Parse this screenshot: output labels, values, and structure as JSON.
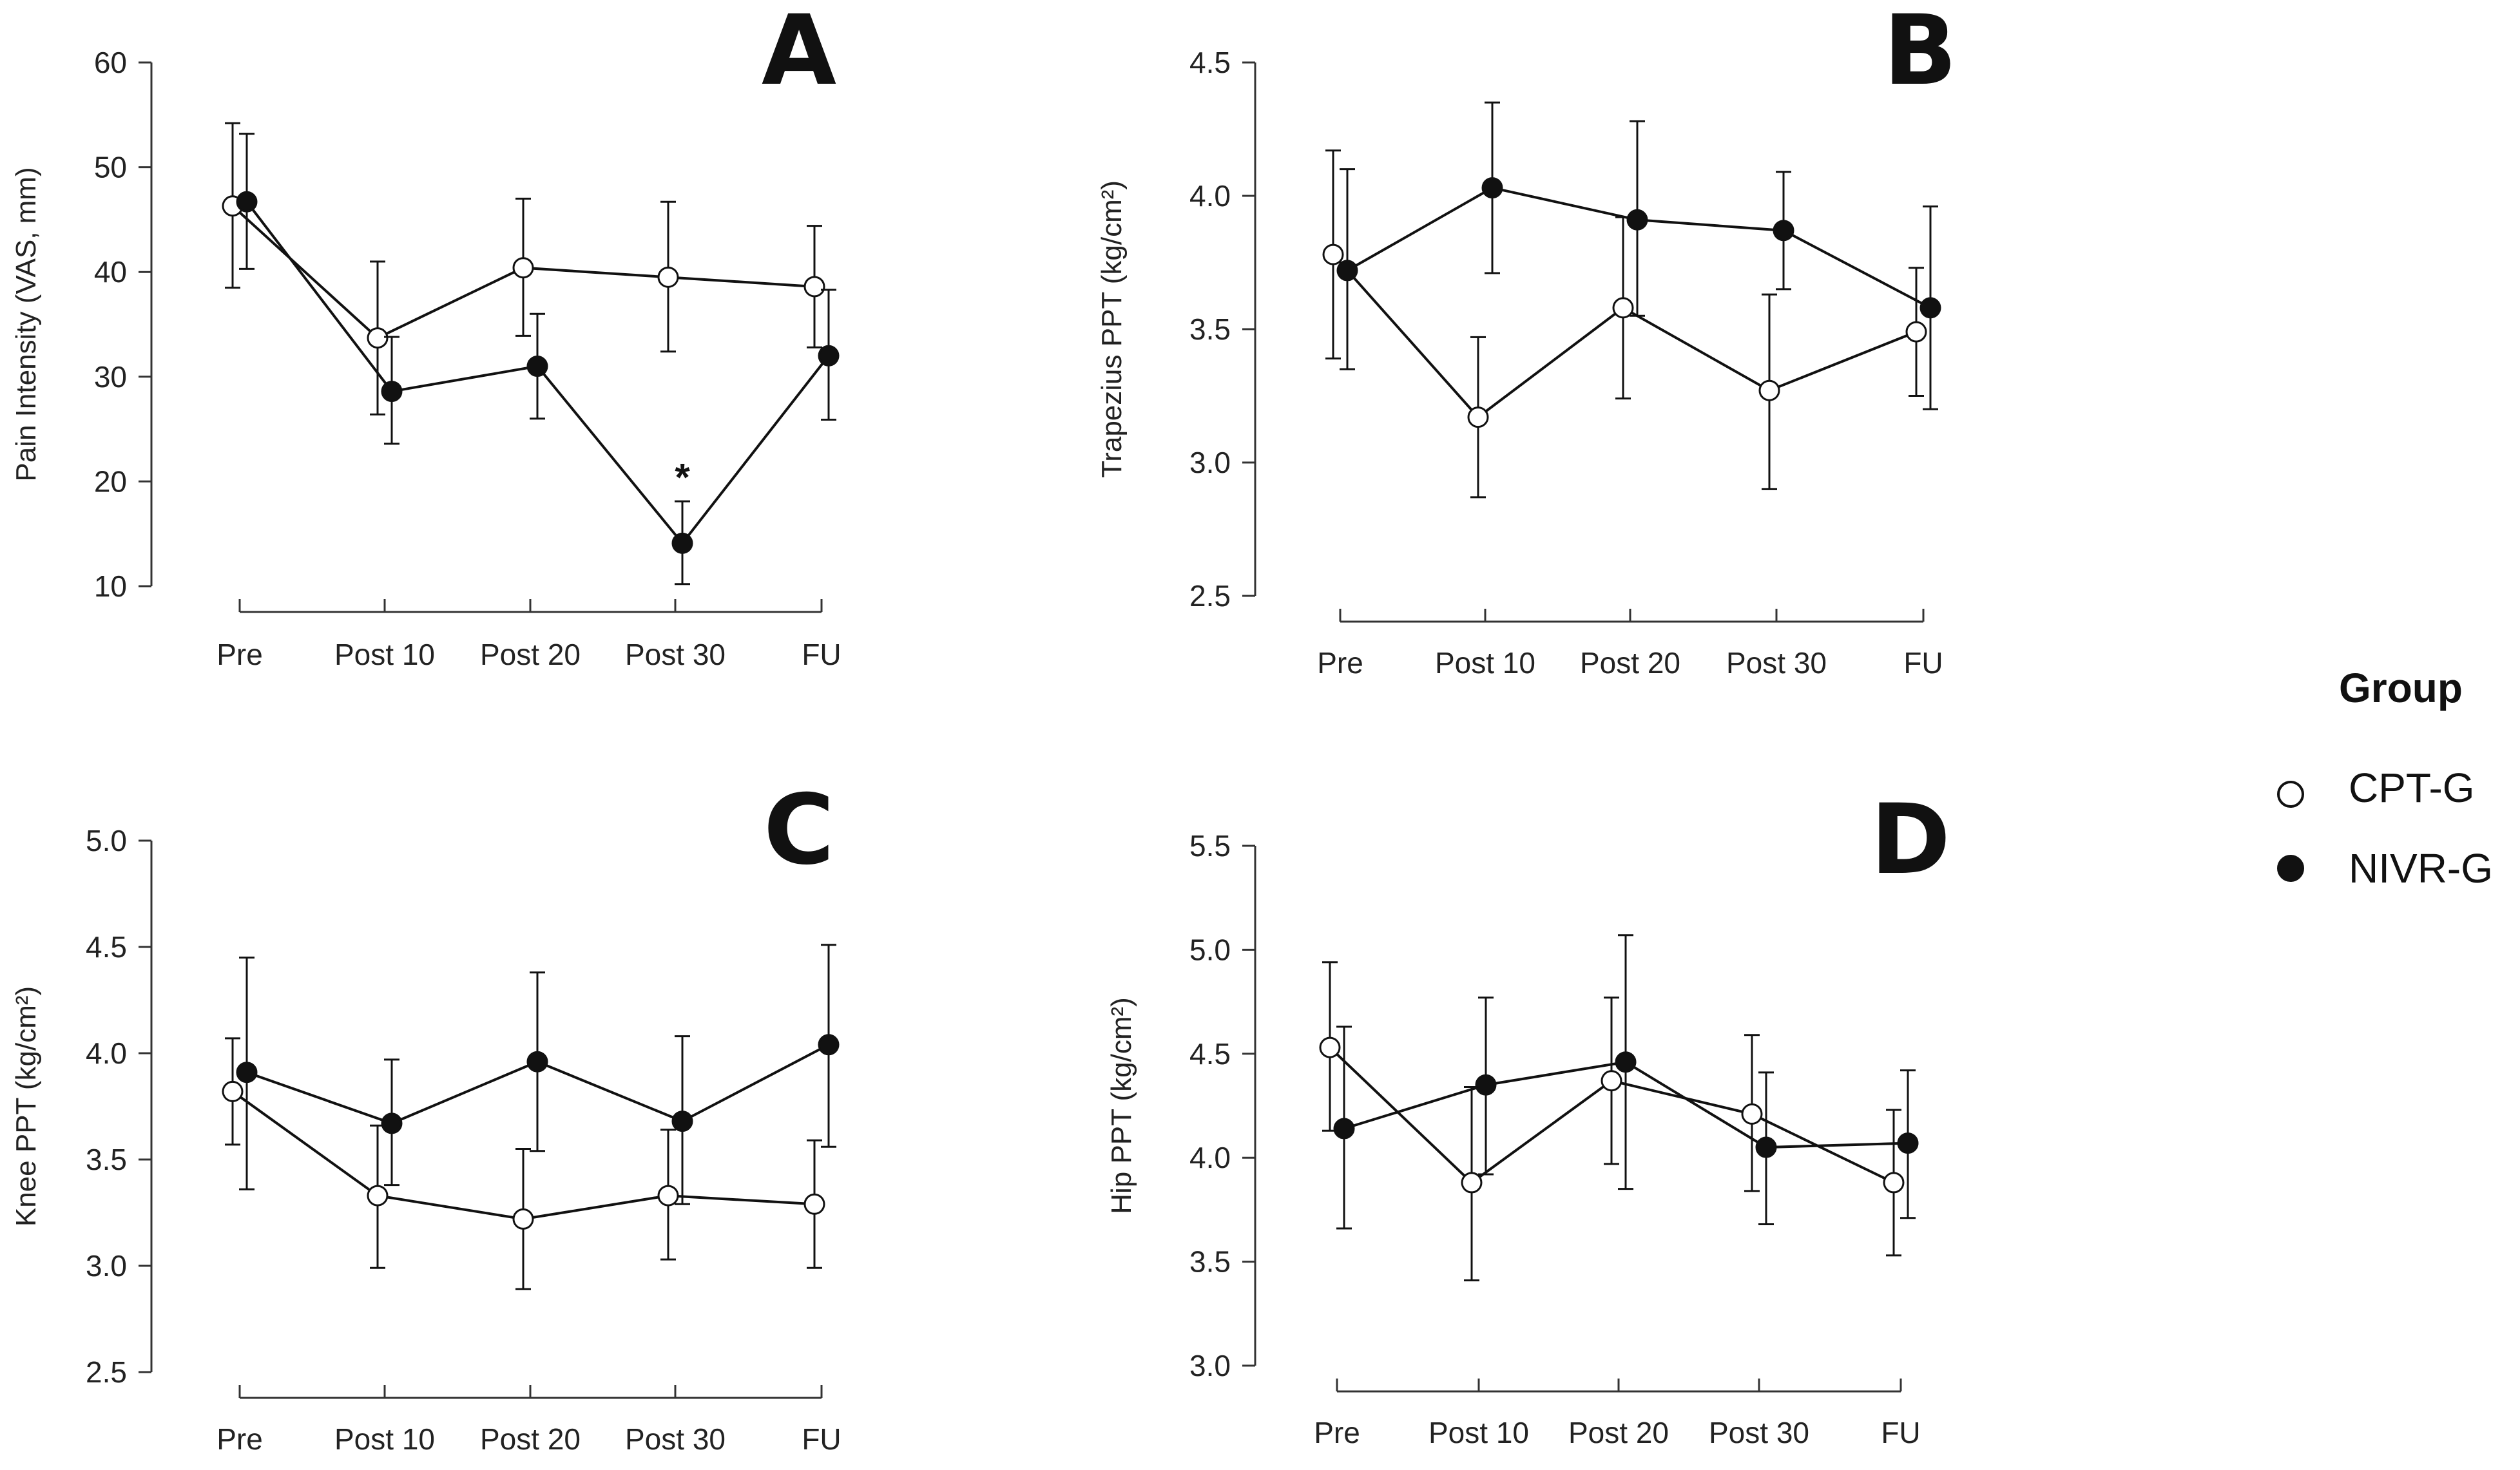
{
  "chart_data": [
    {
      "id": "A",
      "type": "line",
      "panel_label": "A",
      "ylabel": "Pain Intensity (VAS, mm)",
      "xlabel": "",
      "categories": [
        "Pre",
        "Post 10",
        "Post 20",
        "Post 30",
        "FU"
      ],
      "ylim": [
        10,
        60
      ],
      "yticks": [
        10,
        20,
        30,
        40,
        50,
        60
      ],
      "ytick_labels": [
        "10",
        "20",
        "30",
        "40",
        "50",
        "60"
      ],
      "series": [
        {
          "name": "CPT-G",
          "marker": "open-circle",
          "values": [
            46.3,
            33.7,
            40.4,
            39.5,
            38.6
          ],
          "err_low": [
            38.5,
            26.4,
            33.9,
            32.4,
            32.8
          ],
          "err_high": [
            54.2,
            41.0,
            47.0,
            46.7,
            44.4
          ]
        },
        {
          "name": "NIVR-G",
          "marker": "filled-circle",
          "values": [
            46.7,
            28.6,
            31.0,
            14.1,
            32.0
          ],
          "err_low": [
            40.3,
            23.6,
            26.0,
            10.2,
            25.9
          ],
          "err_high": [
            53.2,
            33.8,
            36.0,
            18.1,
            38.3
          ]
        }
      ],
      "annotations": [
        {
          "text": "*",
          "category": "Post 30",
          "y": 20.5
        }
      ]
    },
    {
      "id": "B",
      "type": "line",
      "panel_label": "B",
      "ylabel": "Trapezius PPT (kg/cm²)",
      "xlabel": "",
      "categories": [
        "Pre",
        "Post 10",
        "Post 20",
        "Post 30",
        "FU"
      ],
      "ylim": [
        2.5,
        4.5
      ],
      "yticks": [
        2.5,
        3.0,
        3.5,
        4.0,
        4.5
      ],
      "ytick_labels": [
        "2.5",
        "3.0",
        "3.5",
        "4.0",
        "4.5"
      ],
      "series": [
        {
          "name": "CPT-G",
          "marker": "open-circle",
          "values": [
            3.78,
            3.17,
            3.58,
            3.27,
            3.49
          ],
          "err_low": [
            3.39,
            2.87,
            3.24,
            2.9,
            3.25
          ],
          "err_high": [
            4.17,
            3.47,
            3.92,
            3.63,
            3.73
          ]
        },
        {
          "name": "NIVR-G",
          "marker": "filled-circle",
          "values": [
            3.72,
            4.03,
            3.91,
            3.87,
            3.58
          ],
          "err_low": [
            3.35,
            3.71,
            3.55,
            3.65,
            3.2
          ],
          "err_high": [
            4.1,
            4.35,
            4.28,
            4.09,
            3.96
          ]
        }
      ],
      "annotations": []
    },
    {
      "id": "C",
      "type": "line",
      "panel_label": "C",
      "ylabel": "Knee PPT (kg/cm²)",
      "xlabel": "",
      "categories": [
        "Pre",
        "Post 10",
        "Post 20",
        "Post 30",
        "FU"
      ],
      "ylim": [
        2.5,
        5.0
      ],
      "yticks": [
        2.5,
        3.0,
        3.5,
        4.0,
        4.5,
        5.0
      ],
      "ytick_labels": [
        "2.5",
        "3.0",
        "3.5",
        "4.0",
        "4.5",
        "5.0"
      ],
      "series": [
        {
          "name": "CPT-G",
          "marker": "open-circle",
          "values": [
            3.82,
            3.33,
            3.22,
            3.33,
            3.29
          ],
          "err_low": [
            3.57,
            2.99,
            2.89,
            3.03,
            2.99
          ],
          "err_high": [
            4.07,
            3.66,
            3.55,
            3.64,
            3.59
          ]
        },
        {
          "name": "NIVR-G",
          "marker": "filled-circle",
          "values": [
            3.91,
            3.67,
            3.96,
            3.68,
            4.04
          ],
          "err_low": [
            3.36,
            3.38,
            3.54,
            3.29,
            3.56
          ],
          "err_high": [
            4.45,
            3.97,
            4.38,
            4.08,
            4.51
          ]
        }
      ],
      "annotations": []
    },
    {
      "id": "D",
      "type": "line",
      "panel_label": "D",
      "ylabel": "Hip PPT (kg/cm²)",
      "xlabel": "",
      "categories": [
        "Pre",
        "Post 10",
        "Post 20",
        "Post 30",
        "FU"
      ],
      "ylim": [
        3.0,
        5.5
      ],
      "yticks": [
        3.0,
        3.5,
        4.0,
        4.5,
        5.0,
        5.5
      ],
      "ytick_labels": [
        "3.0",
        "3.5",
        "4.0",
        "4.5",
        "5.0",
        "5.5"
      ],
      "series": [
        {
          "name": "CPT-G",
          "marker": "open-circle",
          "values": [
            4.53,
            3.88,
            4.37,
            4.21,
            3.88
          ],
          "err_low": [
            4.13,
            3.41,
            3.97,
            3.84,
            3.53
          ],
          "err_high": [
            4.94,
            4.34,
            4.77,
            4.59,
            4.23
          ]
        },
        {
          "name": "NIVR-G",
          "marker": "filled-circle",
          "values": [
            4.14,
            4.35,
            4.46,
            4.05,
            4.07
          ],
          "err_low": [
            3.66,
            3.92,
            3.85,
            3.68,
            3.71
          ],
          "err_high": [
            4.63,
            4.77,
            5.07,
            4.41,
            4.42
          ]
        }
      ],
      "annotations": []
    }
  ],
  "legend": {
    "title": "Group",
    "items": [
      {
        "label": "CPT-G",
        "marker": "open-circle"
      },
      {
        "label": "NIVR-G",
        "marker": "filled-circle"
      }
    ]
  },
  "colors": {
    "axis": "#333333",
    "line": "#111111",
    "marker_fill_open": "#ffffff",
    "marker_fill_filled": "#111111",
    "background": "#ffffff"
  }
}
